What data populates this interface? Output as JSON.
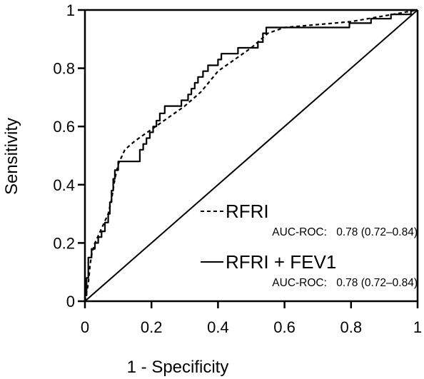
{
  "chart_data": {
    "type": "line",
    "title": "",
    "xlabel": "1 - Specificity",
    "ylabel": "Sensitivity",
    "xlim": [
      0,
      1
    ],
    "ylim": [
      0,
      1
    ],
    "grid": false,
    "legend_position": "bottom-right",
    "x_ticks": [
      "0",
      "0.2",
      "0.4",
      "0.6",
      "0.8",
      "1"
    ],
    "y_ticks": [
      "0",
      "0.2",
      "0.4",
      "0.6",
      "0.8",
      "1"
    ],
    "series": [
      {
        "name": "RFRI",
        "style": "dashed",
        "auc_label": "AUC-ROC:",
        "auc_value": "0.78 (0.72–0.84)",
        "points": [
          [
            0,
            0
          ],
          [
            0.01,
            0.06
          ],
          [
            0.015,
            0.12
          ],
          [
            0.02,
            0.16
          ],
          [
            0.03,
            0.2
          ],
          [
            0.05,
            0.25
          ],
          [
            0.07,
            0.3
          ],
          [
            0.08,
            0.35
          ],
          [
            0.09,
            0.42
          ],
          [
            0.1,
            0.47
          ],
          [
            0.12,
            0.52
          ],
          [
            0.15,
            0.55
          ],
          [
            0.2,
            0.59
          ],
          [
            0.25,
            0.63
          ],
          [
            0.3,
            0.67
          ],
          [
            0.35,
            0.72
          ],
          [
            0.4,
            0.79
          ],
          [
            0.45,
            0.83
          ],
          [
            0.5,
            0.87
          ],
          [
            0.55,
            0.92
          ],
          [
            0.6,
            0.94
          ],
          [
            0.7,
            0.95
          ],
          [
            0.8,
            0.96
          ],
          [
            0.9,
            0.98
          ],
          [
            1,
            1
          ]
        ]
      },
      {
        "name": "RFRI + FEV1",
        "style": "solid",
        "auc_label": "AUC-ROC:",
        "auc_value": "0.78 (0.72–0.84)",
        "points": [
          [
            0,
            0
          ],
          [
            0,
            0.02
          ],
          [
            0.005,
            0.02
          ],
          [
            0.005,
            0.08
          ],
          [
            0.01,
            0.08
          ],
          [
            0.01,
            0.15
          ],
          [
            0.02,
            0.15
          ],
          [
            0.02,
            0.18
          ],
          [
            0.03,
            0.18
          ],
          [
            0.03,
            0.2
          ],
          [
            0.04,
            0.2
          ],
          [
            0.04,
            0.22
          ],
          [
            0.05,
            0.22
          ],
          [
            0.05,
            0.24
          ],
          [
            0.06,
            0.24
          ],
          [
            0.06,
            0.27
          ],
          [
            0.07,
            0.27
          ],
          [
            0.07,
            0.3
          ],
          [
            0.075,
            0.3
          ],
          [
            0.075,
            0.34
          ],
          [
            0.08,
            0.34
          ],
          [
            0.08,
            0.38
          ],
          [
            0.085,
            0.38
          ],
          [
            0.085,
            0.42
          ],
          [
            0.09,
            0.42
          ],
          [
            0.09,
            0.45
          ],
          [
            0.1,
            0.45
          ],
          [
            0.1,
            0.48
          ],
          [
            0.165,
            0.48
          ],
          [
            0.165,
            0.52
          ],
          [
            0.175,
            0.52
          ],
          [
            0.175,
            0.54
          ],
          [
            0.185,
            0.54
          ],
          [
            0.185,
            0.56
          ],
          [
            0.195,
            0.56
          ],
          [
            0.195,
            0.58
          ],
          [
            0.205,
            0.58
          ],
          [
            0.205,
            0.6
          ],
          [
            0.215,
            0.6
          ],
          [
            0.215,
            0.62
          ],
          [
            0.225,
            0.62
          ],
          [
            0.225,
            0.645
          ],
          [
            0.24,
            0.645
          ],
          [
            0.24,
            0.67
          ],
          [
            0.29,
            0.67
          ],
          [
            0.29,
            0.69
          ],
          [
            0.31,
            0.69
          ],
          [
            0.31,
            0.71
          ],
          [
            0.32,
            0.71
          ],
          [
            0.32,
            0.73
          ],
          [
            0.33,
            0.73
          ],
          [
            0.33,
            0.75
          ],
          [
            0.34,
            0.75
          ],
          [
            0.34,
            0.77
          ],
          [
            0.355,
            0.77
          ],
          [
            0.355,
            0.79
          ],
          [
            0.37,
            0.79
          ],
          [
            0.37,
            0.81
          ],
          [
            0.4,
            0.81
          ],
          [
            0.4,
            0.83
          ],
          [
            0.41,
            0.83
          ],
          [
            0.41,
            0.85
          ],
          [
            0.46,
            0.85
          ],
          [
            0.46,
            0.87
          ],
          [
            0.52,
            0.87
          ],
          [
            0.52,
            0.89
          ],
          [
            0.535,
            0.89
          ],
          [
            0.535,
            0.92
          ],
          [
            0.545,
            0.92
          ],
          [
            0.545,
            0.94
          ],
          [
            0.795,
            0.94
          ],
          [
            0.795,
            0.955
          ],
          [
            0.86,
            0.955
          ],
          [
            0.86,
            0.97
          ],
          [
            0.92,
            0.97
          ],
          [
            0.92,
            0.985
          ],
          [
            0.98,
            0.985
          ],
          [
            0.98,
            1
          ],
          [
            1,
            1
          ]
        ]
      }
    ],
    "reference_line": {
      "from": [
        0,
        0
      ],
      "to": [
        1,
        1
      ]
    }
  }
}
